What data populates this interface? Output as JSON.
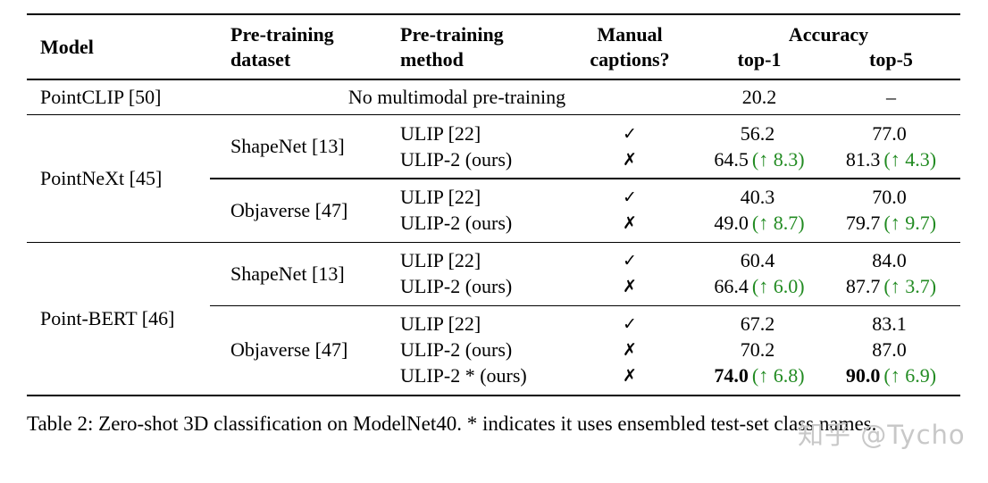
{
  "colors": {
    "accent_green": "#228B22",
    "text": "#000000",
    "watermark_gray": "#c8c8c8"
  },
  "header": {
    "model": "Model",
    "dataset_line1": "Pre-training",
    "dataset_line2": "dataset",
    "method_line1": "Pre-training",
    "method_line2": "method",
    "captions_line1": "Manual",
    "captions_line2": "captions?",
    "accuracy": "Accuracy",
    "top1": "top-1",
    "top5": "top-5"
  },
  "baseline_row": {
    "model": "PointCLIP [50]",
    "note": "No multimodal pre-training",
    "top1": "20.2",
    "top5": "–"
  },
  "groups": [
    {
      "model": "PointNeXt [45]",
      "blocks": [
        {
          "dataset": "ShapeNet [13]",
          "rows": [
            {
              "method": "ULIP [22]",
              "captions": "✓",
              "top1": "56.2",
              "top5": "77.0"
            },
            {
              "method": "ULIP-2 (ours)",
              "captions": "✗",
              "top1": "64.5",
              "top1_delta": "(↑ 8.3)",
              "top5": "81.3",
              "top5_delta": "(↑ 4.3)"
            }
          ]
        },
        {
          "dataset": "Objaverse [47]",
          "rows": [
            {
              "method": "ULIP [22]",
              "captions": "✓",
              "top1": "40.3",
              "top5": "70.0"
            },
            {
              "method": "ULIP-2 (ours)",
              "captions": "✗",
              "top1": "49.0",
              "top1_delta": "(↑ 8.7)",
              "top5": "79.7",
              "top5_delta": "(↑ 9.7)"
            }
          ]
        }
      ]
    },
    {
      "model": "Point-BERT [46]",
      "blocks": [
        {
          "dataset": "ShapeNet [13]",
          "rows": [
            {
              "method": "ULIP [22]",
              "captions": "✓",
              "top1": "60.4",
              "top5": "84.0"
            },
            {
              "method": "ULIP-2 (ours)",
              "captions": "✗",
              "top1": "66.4",
              "top1_delta": "(↑ 6.0)",
              "top5": "87.7",
              "top5_delta": "(↑ 3.7)"
            }
          ]
        },
        {
          "dataset": "Objaverse [47]",
          "rows": [
            {
              "method": "ULIP [22]",
              "captions": "✓",
              "top1": "67.2",
              "top5": "83.1"
            },
            {
              "method": "ULIP-2 (ours)",
              "captions": "✗",
              "top1": "70.2",
              "top5": "87.0"
            },
            {
              "method": "ULIP-2 * (ours)",
              "captions": "✗",
              "top1": "74.0",
              "top1_delta": "(↑ 6.8)",
              "top5": "90.0",
              "top5_delta": "(↑ 6.9)",
              "bold": true
            }
          ]
        }
      ]
    }
  ],
  "caption": "Table 2: Zero-shot 3D classification on ModelNet40. * indicates it uses ensembled test-set class names.",
  "watermark": "知乎 @Tycho"
}
